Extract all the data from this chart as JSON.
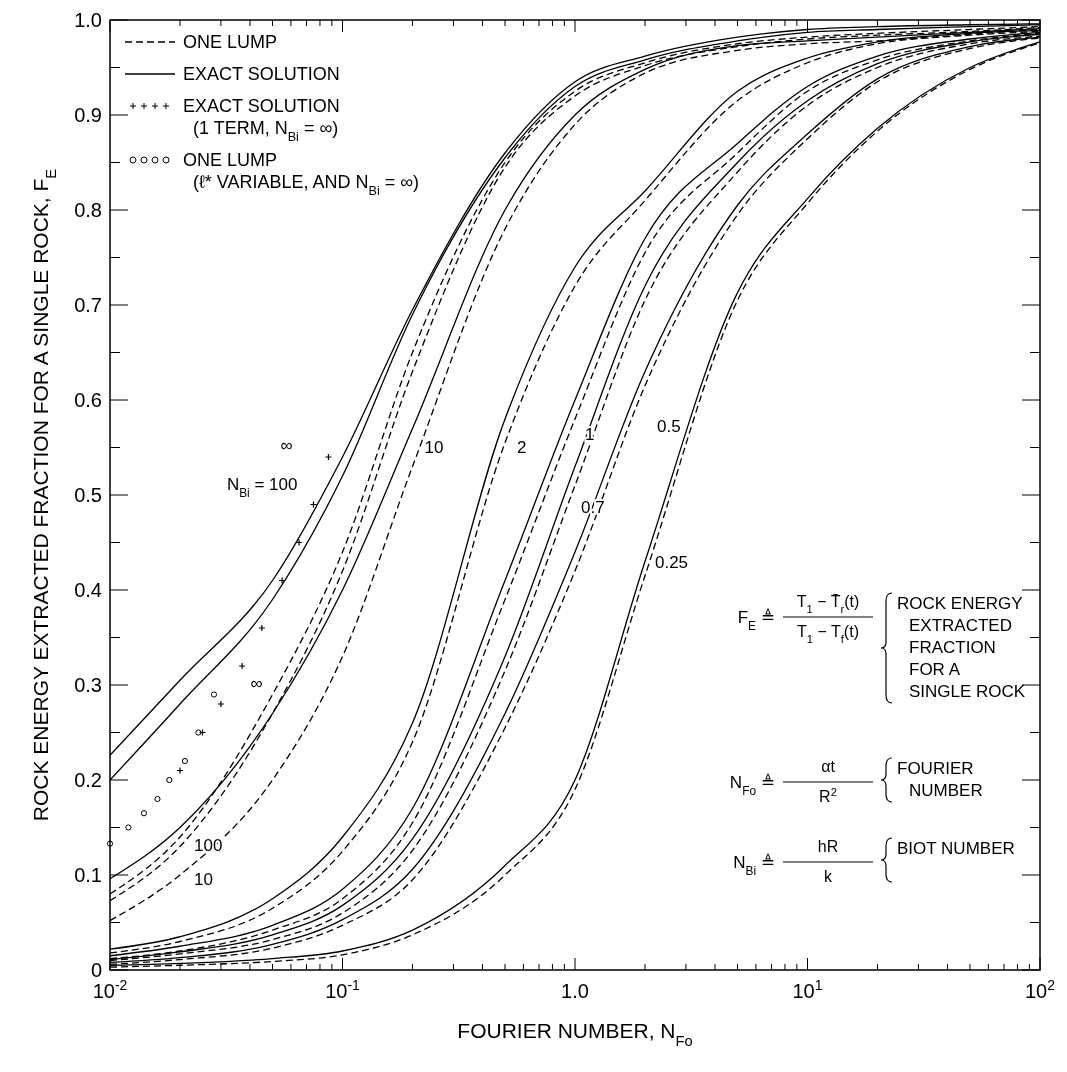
{
  "chart_data": {
    "type": "line",
    "xlabel": "FOURIER NUMBER, N$_{Fo}$",
    "ylabel": "ROCK ENERGY EXTRACTED FRACTION FOR A SINGLE ROCK, F$_{E}$",
    "log": "x",
    "xlim": [
      0.01,
      100
    ],
    "ylim": [
      0,
      1
    ],
    "xticks": [
      {
        "value": 0.01,
        "label": "10$^{-2}$"
      },
      {
        "value": 0.02,
        "label": null
      },
      {
        "value": 0.03,
        "label": null
      },
      {
        "value": 0.04,
        "label": null
      },
      {
        "value": 0.05,
        "label": null
      },
      {
        "value": 0.06,
        "label": null
      },
      {
        "value": 0.07,
        "label": null
      },
      {
        "value": 0.08,
        "label": null
      },
      {
        "value": 0.09,
        "label": null
      },
      {
        "value": 0.1,
        "label": "10$^{-1}$"
      },
      {
        "value": 0.2,
        "label": null
      },
      {
        "value": 0.3,
        "label": null
      },
      {
        "value": 0.4,
        "label": null
      },
      {
        "value": 0.5,
        "label": null
      },
      {
        "value": 0.6,
        "label": null
      },
      {
        "value": 0.7,
        "label": null
      },
      {
        "value": 0.8,
        "label": null
      },
      {
        "value": 0.9,
        "label": null
      },
      {
        "value": 1,
        "label": "1.0"
      },
      {
        "value": 2,
        "label": null
      },
      {
        "value": 3,
        "label": null
      },
      {
        "value": 4,
        "label": null
      },
      {
        "value": 5,
        "label": null
      },
      {
        "value": 6,
        "label": null
      },
      {
        "value": 7,
        "label": null
      },
      {
        "value": 8,
        "label": null
      },
      {
        "value": 9,
        "label": null
      },
      {
        "value": 10,
        "label": "10$^{1}$"
      },
      {
        "value": 20,
        "label": null
      },
      {
        "value": 30,
        "label": null
      },
      {
        "value": 40,
        "label": null
      },
      {
        "value": 50,
        "label": null
      },
      {
        "value": 60,
        "label": null
      },
      {
        "value": 70,
        "label": null
      },
      {
        "value": 80,
        "label": null
      },
      {
        "value": 90,
        "label": null
      },
      {
        "value": 100,
        "label": "10$^{2}$"
      }
    ],
    "yticks": [
      0,
      {
        "value": 0.05,
        "label": null
      },
      0.1,
      {
        "value": 0.15,
        "label": null
      },
      0.2,
      {
        "value": 0.25,
        "label": null
      },
      0.3,
      {
        "value": 0.35,
        "label": null
      },
      0.4,
      {
        "value": 0.45,
        "label": null
      },
      0.5,
      {
        "value": 0.55,
        "label": null
      },
      0.6,
      {
        "value": 0.65,
        "label": null
      },
      0.7,
      {
        "value": 0.75,
        "label": null
      },
      0.8,
      {
        "value": 0.85,
        "label": null
      },
      0.9,
      {
        "value": 0.95,
        "label": null
      },
      {
        "value": 1,
        "label": "1.0"
      }
    ],
    "grid": false,
    "legend": "top left",
    "x": [
      0.01,
      0.02,
      0.05,
      0.1,
      0.2,
      0.5,
      1,
      2,
      5,
      10,
      20,
      50,
      100
    ],
    "series": [
      {
        "name": "ONE LUMP",
        "color": "#000000",
        "line_style": "dashed",
        "values": [
          0.08,
          0.14,
          0.29,
          0.44,
          0.65,
          0.85,
          0.925,
          0.955,
          0.975,
          0.982,
          0.986,
          0.99,
          0.993
        ]
      },
      {
        "name": "EXACT SOLUTION",
        "color": "#000000",
        "line_style": "solid",
        "values": [
          0.226,
          0.305,
          0.41,
          0.54,
          0.695,
          0.86,
          0.935,
          0.962,
          0.982,
          0.99,
          0.993,
          0.995,
          0.996
        ]
      },
      {
        "name": "EXACT SOLUTION (1 TERM, N$_{Bi}$ = ∞)",
        "color": "#000000",
        "type": "scatter",
        "marker": "cross",
        "x": [
          0.02,
          0.025,
          0.03,
          0.037,
          0.045,
          0.055,
          0.065,
          0.075,
          0.087
        ],
        "values": [
          0.21,
          0.25,
          0.28,
          0.32,
          0.36,
          0.41,
          0.45,
          0.49,
          0.54
        ]
      },
      {
        "name": "ONE LUMP (ℓ* VARIABLE, AND N$_{Bi}$ = ∞)",
        "color": "#000000",
        "type": "scatter",
        "marker": "circle",
        "x": [
          0.01,
          0.012,
          0.014,
          0.016,
          0.018,
          0.021,
          0.024,
          0.028
        ],
        "values": [
          0.133,
          0.15,
          0.165,
          0.18,
          0.2,
          0.22,
          0.25,
          0.29
        ]
      },
      {
        "color": "#000000",
        "line_style": "solid",
        "values": [
          0.2,
          0.28,
          0.39,
          0.52,
          0.69,
          0.855,
          0.93,
          0.958,
          0.978,
          0.987,
          0.99,
          0.993,
          0.995
        ]
      },
      {
        "color": "#000000",
        "line_style": "dashed",
        "values": [
          0.073,
          0.13,
          0.27,
          0.42,
          0.63,
          0.845,
          0.92,
          0.952,
          0.972,
          0.98,
          0.984,
          0.988,
          0.992
        ]
      },
      {
        "color": "#000000",
        "line_style": "solid",
        "values": [
          0.096,
          0.15,
          0.27,
          0.4,
          0.57,
          0.8,
          0.9,
          0.948,
          0.973,
          0.978,
          0.982,
          0.987,
          0.991
        ]
      },
      {
        "color": "#000000",
        "line_style": "dashed",
        "values": [
          0.052,
          0.1,
          0.2,
          0.33,
          0.53,
          0.78,
          0.89,
          0.944,
          0.968,
          0.975,
          0.978,
          0.985,
          0.99
        ]
      },
      {
        "color": "#000000",
        "line_style": "solid",
        "values": [
          0.022,
          0.035,
          0.075,
          0.14,
          0.26,
          0.58,
          0.74,
          0.82,
          0.925,
          0.96,
          0.977,
          0.986,
          0.989
        ]
      },
      {
        "color": "#000000",
        "line_style": "dashed",
        "values": [
          0.018,
          0.03,
          0.065,
          0.125,
          0.24,
          0.555,
          0.72,
          0.81,
          0.915,
          0.955,
          0.975,
          0.984,
          0.988
        ]
      },
      {
        "color": "#000000",
        "line_style": "solid",
        "values": [
          0.015,
          0.025,
          0.047,
          0.085,
          0.17,
          0.41,
          0.6,
          0.77,
          0.87,
          0.93,
          0.962,
          0.98,
          0.987
        ]
      },
      {
        "color": "#000000",
        "line_style": "dashed",
        "values": [
          0.012,
          0.02,
          0.042,
          0.075,
          0.155,
          0.39,
          0.58,
          0.755,
          0.86,
          0.925,
          0.958,
          0.978,
          0.986
        ]
      },
      {
        "color": "#000000",
        "line_style": "solid",
        "values": [
          0.011,
          0.019,
          0.037,
          0.068,
          0.138,
          0.33,
          0.53,
          0.72,
          0.85,
          0.915,
          0.954,
          0.977,
          0.985
        ]
      },
      {
        "color": "#000000",
        "line_style": "dashed",
        "values": [
          0.01,
          0.017,
          0.032,
          0.06,
          0.126,
          0.315,
          0.51,
          0.705,
          0.84,
          0.91,
          0.95,
          0.975,
          0.983
        ]
      },
      {
        "color": "#000000",
        "line_style": "solid",
        "values": [
          0.008,
          0.013,
          0.027,
          0.053,
          0.106,
          0.27,
          0.44,
          0.63,
          0.805,
          0.88,
          0.938,
          0.972,
          0.982
        ]
      },
      {
        "color": "#000000",
        "line_style": "dashed",
        "values": [
          0.006,
          0.011,
          0.023,
          0.047,
          0.095,
          0.255,
          0.42,
          0.615,
          0.795,
          0.875,
          0.935,
          0.97,
          0.981
        ]
      },
      {
        "color": "#000000",
        "line_style": "solid",
        "values": [
          0.005,
          0.007,
          0.012,
          0.02,
          0.042,
          0.11,
          0.2,
          0.43,
          0.713,
          0.812,
          0.886,
          0.95,
          0.977
        ]
      },
      {
        "color": "#000000",
        "line_style": "dashed",
        "values": [
          0.003,
          0.005,
          0.009,
          0.016,
          0.037,
          0.1,
          0.19,
          0.415,
          0.705,
          0.807,
          0.883,
          0.948,
          0.976
        ]
      }
    ],
    "annotations": [
      {
        "text": "∞",
        "x": 0.1,
        "y": 0.54
      },
      {
        "text": "N$_{Bi}$ = 100",
        "x": 0.1,
        "y": 0.52
      },
      {
        "text": "10",
        "x": 0.2,
        "y": 0.57
      },
      {
        "text": "2",
        "x": 0.5,
        "y": 0.58
      },
      {
        "text": "1",
        "x": 1,
        "y": 0.6
      },
      {
        "text": "0.7",
        "x": 1,
        "y": 0.53
      },
      {
        "text": "0.5",
        "x": 2,
        "y": 0.63
      },
      {
        "text": "0.25",
        "x": 2,
        "y": 0.43
      },
      {
        "text": "∞",
        "x": 0.05,
        "y": 0.29
      },
      {
        "text": "100",
        "x": 0.02,
        "y": 0.13
      },
      {
        "text": "10",
        "x": 0.02,
        "y": 0.1
      },
      "F$_{E}$ ≜",
      "T$_{1}$ − T̄$_{r}$(t)",
      "T$_{1}$ − T$_{f}$(t)",
      "ROCK ENERGY EXTRACTED FRACTION FOR A SINGLE ROCK",
      "N$_{Fo}$ ≜",
      "αt",
      "R$^{2}$",
      "FOURIER NUMBER",
      "N$_{Bi}$ ≜",
      "hR",
      "k",
      "BIOT NUMBER"
    ]
  }
}
